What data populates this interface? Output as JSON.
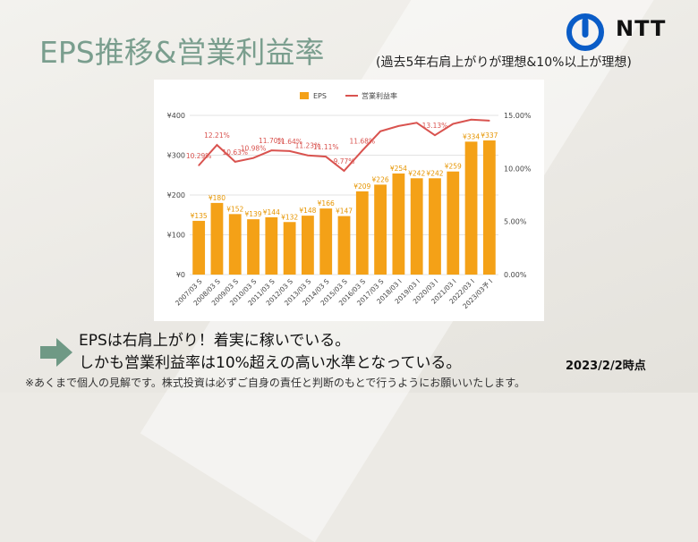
{
  "slide": {
    "title": "EPS推移&営業利益率",
    "subtitle": "(過去5年右肩上がりが理想&10%以上が理想)",
    "logo_text": "NTT",
    "message_line1": "EPSは右肩上がり！着実に稼いでいる。",
    "message_line2": "しかも営業利益率は10%超えの高い水準となっている。",
    "date_note": "2023/2/2時点",
    "disclaimer": "※あくまで個人の見解です。株式投資は必ずご自身の責任と判断のもとで行うようにお願いいたします。",
    "colors": {
      "title": "#7a9e8e",
      "bar": "#f4a117",
      "line": "#d9534f",
      "arrow": "#6f9985"
    }
  },
  "chart_data": {
    "type": "bar",
    "categories": [
      "2007/03 S",
      "2008/03 S",
      "2009/03 S",
      "2010/03 S",
      "2011/03 S",
      "2012/03 S",
      "2013/03 S",
      "2014/03 S",
      "2015/03 S",
      "2016/03 S",
      "2017/03 S",
      "2018/03 I",
      "2019/03 I",
      "2020/03 I",
      "2021/03 I",
      "2022/03 I",
      "2023/03予 I"
    ],
    "series": [
      {
        "name": "EPS",
        "type": "bar",
        "axis": "left",
        "values": [
          135,
          180,
          152,
          139,
          144,
          132,
          148,
          166,
          147,
          209,
          226,
          254,
          242,
          242,
          259,
          334,
          337
        ],
        "labels": [
          "¥135",
          "¥180",
          "¥152",
          "¥139",
          "¥144",
          "¥132",
          "¥148",
          "¥166",
          "¥147",
          "¥209",
          "¥226",
          "¥254",
          "¥242",
          "¥242",
          "¥259",
          "¥334",
          "¥337"
        ]
      },
      {
        "name": "営業利益率",
        "type": "line",
        "axis": "right",
        "values": [
          10.29,
          12.21,
          10.63,
          10.98,
          11.7,
          11.64,
          11.23,
          11.11,
          9.77,
          11.68,
          13.5,
          14.0,
          14.3,
          13.13,
          14.2,
          14.6,
          14.5
        ],
        "labels": [
          "10.29%",
          "12.21%",
          "10.63%",
          "10.98%",
          "11.70%",
          "11.64%",
          "11.23%",
          "11.11%",
          "9.77%",
          "11.68%",
          "",
          "",
          "",
          "13.13%",
          "",
          "",
          ""
        ]
      }
    ],
    "y_left": {
      "min": 0,
      "max": 400,
      "ticks": [
        "¥0",
        "¥100",
        "¥200",
        "¥300",
        "¥400"
      ]
    },
    "y_right": {
      "min": 0,
      "max": 15,
      "ticks": [
        "0.00%",
        "5.00%",
        "10.00%",
        "15.00%"
      ]
    },
    "legend": {
      "placement": "top-center",
      "items": [
        "EPS",
        "営業利益率"
      ]
    },
    "grid": true
  }
}
